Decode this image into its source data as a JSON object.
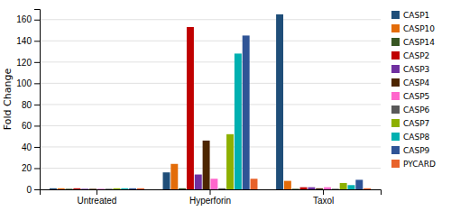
{
  "chart_data": {
    "type": "bar",
    "categories": [
      "Untreated",
      "Hyperforin",
      "Taxol"
    ],
    "series": [
      {
        "name": "CASP1",
        "color": "#1F4E79",
        "values": [
          1,
          16,
          165
        ]
      },
      {
        "name": "CASP10",
        "color": "#E36C09",
        "values": [
          1,
          24,
          8
        ]
      },
      {
        "name": "CASP14",
        "color": "#375623",
        "values": [
          0.5,
          1,
          0.5
        ]
      },
      {
        "name": "CASP2",
        "color": "#C00000",
        "values": [
          1,
          153,
          2
        ]
      },
      {
        "name": "CASP3",
        "color": "#7030A0",
        "values": [
          0.5,
          14,
          2
        ]
      },
      {
        "name": "CASP4",
        "color": "#4D2600",
        "values": [
          0.5,
          46,
          1
        ]
      },
      {
        "name": "CASP5",
        "color": "#FF66CC",
        "values": [
          0.5,
          10,
          2
        ]
      },
      {
        "name": "CASP6",
        "color": "#595959",
        "values": [
          0.5,
          1,
          0.5
        ]
      },
      {
        "name": "CASP7",
        "color": "#8DB000",
        "values": [
          1,
          52,
          6
        ]
      },
      {
        "name": "CASP8",
        "color": "#00B0B0",
        "values": [
          1,
          128,
          4
        ]
      },
      {
        "name": "CASP9",
        "color": "#2F5496",
        "values": [
          1,
          145,
          9
        ]
      },
      {
        "name": "PYCARD",
        "color": "#E8622A",
        "values": [
          1,
          10,
          1
        ]
      }
    ],
    "ylabel": "Fold Change",
    "ylim": [
      0,
      170
    ],
    "yticks": [
      0,
      20,
      40,
      60,
      80,
      100,
      120,
      140,
      160
    ],
    "grid": true,
    "legend": "right"
  }
}
